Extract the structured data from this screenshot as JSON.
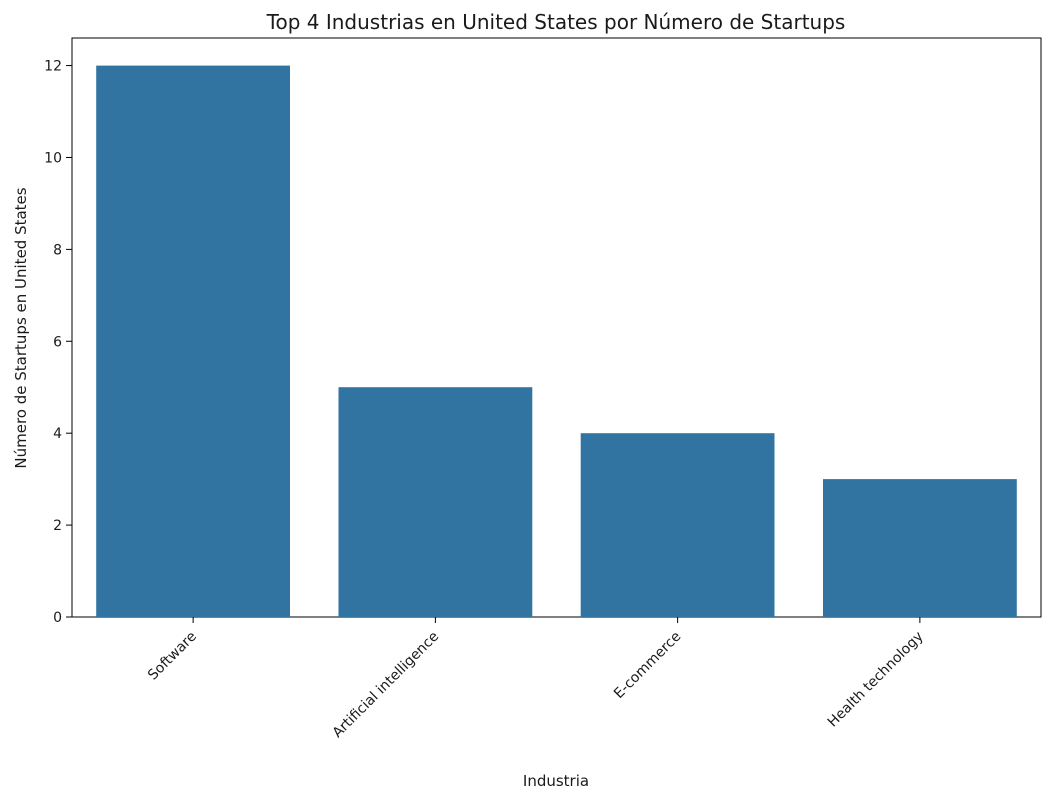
{
  "chart_data": {
    "type": "bar",
    "title": "Top 4 Industrias en United States por Número de Startups",
    "xlabel": "Industria",
    "ylabel": "Número de Startups en United States",
    "categories": [
      "Software",
      "Artificial intelligence",
      "E-commerce",
      "Health technology"
    ],
    "values": [
      12,
      5,
      4,
      3
    ],
    "ylim": [
      0,
      12.6
    ],
    "yticks": [
      0,
      2,
      4,
      6,
      8,
      10,
      12
    ],
    "bar_color": "#3274a1",
    "grid": false,
    "legend": "none"
  }
}
